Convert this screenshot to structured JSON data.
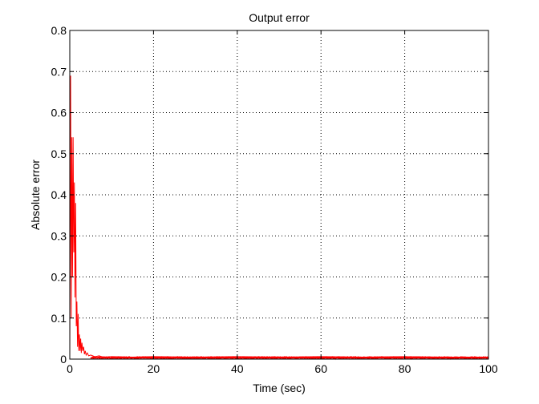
{
  "chart_data": {
    "type": "line",
    "title": "Output error",
    "xlabel": "Time (sec)",
    "ylabel": "Absolute error",
    "xlim": [
      0,
      100
    ],
    "ylim": [
      0,
      0.8
    ],
    "xticks": [
      0,
      20,
      40,
      60,
      80,
      100
    ],
    "xtick_labels": [
      "0",
      "20",
      "40",
      "60",
      "80",
      "100"
    ],
    "yticks": [
      0,
      0.1,
      0.2,
      0.3,
      0.4,
      0.5,
      0.6,
      0.7,
      0.8
    ],
    "ytick_labels": [
      "0",
      "0.1",
      "0.2",
      "0.3",
      "0.4",
      "0.5",
      "0.6",
      "0.7",
      "0.8"
    ],
    "grid": true,
    "grid_style": "dotted",
    "line_color": "#ff0000",
    "series": [
      {
        "x": [
          0,
          0.2,
          0.35,
          0.5,
          0.65,
          0.8,
          0.95,
          1.1,
          1.25,
          1.4,
          1.55,
          1.7,
          1.85,
          2.0,
          2.15,
          2.3,
          2.45,
          2.6,
          2.75,
          2.9,
          3.1,
          3.3,
          3.5,
          3.7,
          3.9,
          4.2,
          4.5,
          5,
          6,
          7,
          8,
          10,
          15,
          20,
          30,
          40,
          50,
          60,
          70,
          80,
          90,
          100
        ],
        "values": [
          0.0,
          0.69,
          0.1,
          0.54,
          0.2,
          0.54,
          0.26,
          0.43,
          0.15,
          0.38,
          0.08,
          0.14,
          0.03,
          0.11,
          0.02,
          0.06,
          0.02,
          0.05,
          0.015,
          0.04,
          0.02,
          0.03,
          0.012,
          0.02,
          0.01,
          0.015,
          0.008,
          0.01,
          0.006,
          0.008,
          0.005,
          0.006,
          0.005,
          0.006,
          0.005,
          0.006,
          0.005,
          0.006,
          0.005,
          0.006,
          0.005,
          0.005
        ]
      }
    ]
  }
}
